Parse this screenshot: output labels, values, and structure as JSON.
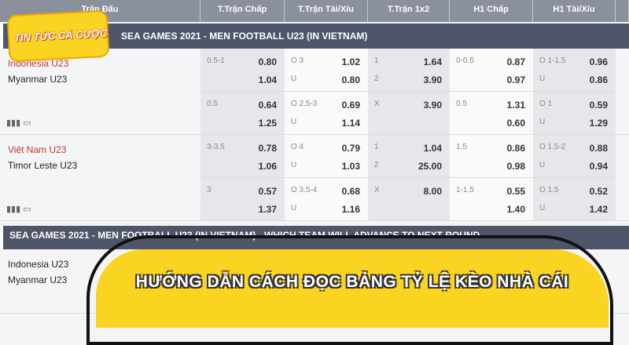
{
  "header": [
    "Trận Đấu",
    "T.Trận Chấp",
    "T.Trận Tài/Xíu",
    "T.Trận 1x2",
    "H1 Chấp",
    "H1 Tài/Xíu"
  ],
  "section1": "SEA GAMES 2021 - MEN FOOTBALL U23 (IN VIETNAM)",
  "section2": "SEA GAMES 2021 - MEN FOOTBALL U23 (IN VIETNAM) - WHICH TEAM WILL ADVANCE TO NEXT ROUND",
  "matches": [
    {
      "home": "Indonesia U23",
      "away": "Myanmar U23",
      "lines": [
        [
          [
            "0.5-1",
            "0.80",
            "",
            "1.04"
          ],
          [
            "O 3",
            "1.02",
            "U",
            "0.80"
          ],
          [
            "1",
            "1.64",
            "2",
            "3.90"
          ],
          [
            "0-0.5",
            "0.87",
            "",
            "0.97"
          ],
          [
            "O 1-1.5",
            "0.96",
            "U",
            "0.86"
          ]
        ],
        [
          [
            "0.5",
            "0.64",
            "",
            "1.25"
          ],
          [
            "O 2.5-3",
            "0.69",
            "U",
            "1.14"
          ],
          [
            "X",
            "3.90",
            "",
            ""
          ],
          [
            "0.5",
            "1.31",
            "",
            "0.60"
          ],
          [
            "O 1",
            "0.59",
            "U",
            "1.29"
          ]
        ]
      ]
    },
    {
      "home": "Việt Nam U23",
      "away": "Timor Leste U23",
      "lines": [
        [
          [
            "3-3.5",
            "0.78",
            "",
            "1.06"
          ],
          [
            "O 4",
            "0.79",
            "U",
            "1.03"
          ],
          [
            "1",
            "1.04",
            "2",
            "25.00"
          ],
          [
            "1.5",
            "0.86",
            "",
            "0.98"
          ],
          [
            "O 1.5-2",
            "0.88",
            "U",
            "0.94"
          ]
        ],
        [
          [
            "3",
            "0.57",
            "",
            "1.37"
          ],
          [
            "O 3.5-4",
            "0.68",
            "U",
            "1.16"
          ],
          [
            "X",
            "8.00",
            "",
            ""
          ],
          [
            "1-1.5",
            "0.55",
            "",
            "1.40"
          ],
          [
            "O 1.5",
            "0.52",
            "U",
            "1.42"
          ]
        ]
      ]
    }
  ],
  "next_match": {
    "home": "Indonesia U23",
    "away": "Myanmar U23"
  },
  "logo_text": "TIN TỨC CÁ CƯỢC",
  "banner_title": "HƯỚNG DẪN CÁCH ĐỌC BẢNG TỶ LỆ KÈO NHÀ CÁI",
  "colors": {
    "banner": "#fbd321",
    "section": "#4f5669",
    "header": "#8b909d",
    "team_red": "#c0392b"
  }
}
